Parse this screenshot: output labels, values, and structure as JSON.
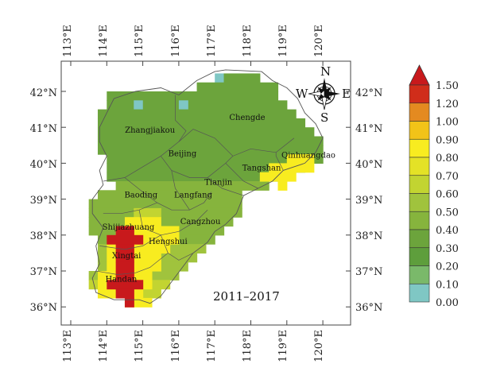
{
  "map": {
    "period_label": "2011–2017",
    "lon_labels": [
      "113°E",
      "114°E",
      "115°E",
      "116°E",
      "117°E",
      "118°E",
      "119°E",
      "120°E"
    ],
    "lat_labels": [
      "42°N",
      "41°N",
      "40°N",
      "39°N",
      "38°N",
      "37°N",
      "36°N"
    ],
    "cities": [
      {
        "name": "Zhangjiakou",
        "lon": 115.2,
        "lat": 40.85
      },
      {
        "name": "Chengde",
        "lon": 117.9,
        "lat": 41.2
      },
      {
        "name": "Beijing",
        "lon": 116.1,
        "lat": 40.2
      },
      {
        "name": "Qinhuangdao",
        "lon": 119.6,
        "lat": 40.15
      },
      {
        "name": "Tangshan",
        "lon": 118.3,
        "lat": 39.8
      },
      {
        "name": "Tianjin",
        "lon": 117.1,
        "lat": 39.4
      },
      {
        "name": "Baoding",
        "lon": 114.95,
        "lat": 39.05
      },
      {
        "name": "Langfang",
        "lon": 116.4,
        "lat": 39.05
      },
      {
        "name": "Cangzhou",
        "lon": 116.6,
        "lat": 38.3
      },
      {
        "name": "Shijiazhuang",
        "lon": 114.6,
        "lat": 38.15
      },
      {
        "name": "Hengshui",
        "lon": 115.7,
        "lat": 37.75
      },
      {
        "name": "Xingtai",
        "lon": 114.55,
        "lat": 37.35
      },
      {
        "name": "Handan",
        "lon": 114.4,
        "lat": 36.7
      }
    ],
    "compass": {
      "n": "N",
      "s": "S",
      "e": "E",
      "w": "W"
    }
  },
  "colorbar": {
    "ticks": [
      "0.00",
      "0.10",
      "0.20",
      "0.30",
      "0.40",
      "0.50",
      "0.60",
      "0.70",
      "0.80",
      "0.90",
      "1.00",
      "1.20",
      "1.50"
    ],
    "colors": [
      "#7fc7c4",
      "#7ab96a",
      "#5e9e3c",
      "#6ca43c",
      "#86b43d",
      "#a0c33d",
      "#c2d431",
      "#e4e226",
      "#f8ec20",
      "#f2c318",
      "#e48a20",
      "#d02d1a"
    ],
    "extend_color": "#c8191c"
  }
}
